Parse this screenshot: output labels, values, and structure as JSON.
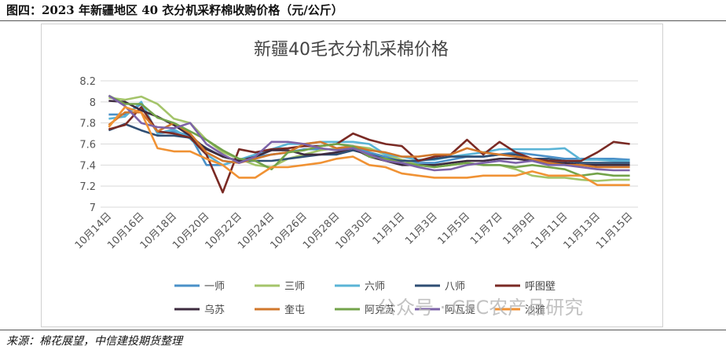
{
  "caption": "图四：2023 年新疆地区 40 衣分机采籽棉收购价格（元/公斤）",
  "source": "来源：棉花展望，中信建投期货整理",
  "watermark": "公众号 · CFC农产品研究",
  "chart_data": {
    "type": "line",
    "title": "新疆40毛衣分机采棉价格",
    "xlabel": "",
    "ylabel": "",
    "ylim": [
      7,
      8.2
    ],
    "yticks": [
      "7",
      "7.2",
      "7.4",
      "7.6",
      "7.8",
      "8",
      "8.2"
    ],
    "grid": true,
    "legend_position": "bottom",
    "x": [
      "10月14日",
      "10月15日",
      "10月16日",
      "10月17日",
      "10月18日",
      "10月19日",
      "10月20日",
      "10月21日",
      "10月22日",
      "10月23日",
      "10月24日",
      "10月25日",
      "10月26日",
      "10月27日",
      "10月28日",
      "10月29日",
      "10月30日",
      "10月31日",
      "11月1日",
      "11月2日",
      "11月3日",
      "11月4日",
      "11月5日",
      "11月6日",
      "11月7日",
      "11月8日",
      "11月9日",
      "11月10日",
      "11月11日",
      "11月12日",
      "11月13日",
      "11月14日",
      "11月15日"
    ],
    "x_tick_labels": [
      "10月14日",
      "10月16日",
      "10月18日",
      "10月20日",
      "10月22日",
      "10月24日",
      "10月26日",
      "10月28日",
      "10月30日",
      "11月1日",
      "11月3日",
      "11月5日",
      "11月7日",
      "11月9日",
      "11月11日",
      "11月13日",
      "11月15日"
    ],
    "series": [
      {
        "name": "一师",
        "color": "#4a90c8",
        "values": [
          7.88,
          7.88,
          7.98,
          7.7,
          7.72,
          7.68,
          7.4,
          7.4,
          7.45,
          7.48,
          7.5,
          7.52,
          7.55,
          7.55,
          7.55,
          7.58,
          7.52,
          7.48,
          7.45,
          7.42,
          7.42,
          7.45,
          7.48,
          7.48,
          7.5,
          7.52,
          7.5,
          7.48,
          7.46,
          7.46,
          7.46,
          7.46,
          7.45
        ]
      },
      {
        "name": "三师",
        "color": "#a4c46a",
        "values": [
          8.04,
          8.02,
          8.05,
          7.98,
          7.84,
          7.8,
          7.64,
          7.52,
          7.46,
          7.4,
          7.38,
          7.46,
          7.5,
          7.54,
          7.56,
          7.58,
          7.56,
          7.5,
          7.45,
          7.4,
          7.38,
          7.4,
          7.42,
          7.4,
          7.4,
          7.36,
          7.3,
          7.28,
          7.28,
          7.26,
          7.25,
          7.26,
          7.26
        ]
      },
      {
        "name": "六师",
        "color": "#5ab4d6",
        "values": [
          7.84,
          7.86,
          8.0,
          7.7,
          7.74,
          7.65,
          7.5,
          7.4,
          7.45,
          7.5,
          7.55,
          7.6,
          7.6,
          7.62,
          7.62,
          7.62,
          7.6,
          7.5,
          7.48,
          7.45,
          7.45,
          7.48,
          7.5,
          7.52,
          7.55,
          7.55,
          7.55,
          7.55,
          7.56,
          7.45,
          7.45,
          7.44,
          7.44
        ]
      },
      {
        "name": "八师",
        "color": "#2f4e73",
        "values": [
          7.73,
          7.79,
          7.73,
          7.68,
          7.68,
          7.66,
          7.56,
          7.48,
          7.44,
          7.44,
          7.44,
          7.46,
          7.48,
          7.5,
          7.5,
          7.54,
          7.5,
          7.46,
          7.44,
          7.44,
          7.46,
          7.48,
          7.48,
          7.48,
          7.5,
          7.5,
          7.46,
          7.46,
          7.44,
          7.42,
          7.42,
          7.42,
          7.42
        ]
      },
      {
        "name": "呼图壁",
        "color": "#7a2a24",
        "values": [
          7.74,
          7.78,
          7.95,
          7.72,
          7.7,
          7.66,
          7.5,
          7.14,
          7.55,
          7.52,
          7.55,
          7.56,
          7.58,
          7.58,
          7.6,
          7.7,
          7.64,
          7.6,
          7.58,
          7.44,
          7.48,
          7.5,
          7.64,
          7.5,
          7.62,
          7.52,
          7.46,
          7.44,
          7.44,
          7.44,
          7.52,
          7.62,
          7.6
        ]
      },
      {
        "name": "乌苏",
        "color": "#3d2b3f",
        "values": [
          8.01,
          8.0,
          7.92,
          7.86,
          7.78,
          7.68,
          7.55,
          7.48,
          7.44,
          7.48,
          7.54,
          7.54,
          7.5,
          7.5,
          7.52,
          7.56,
          7.48,
          7.44,
          7.4,
          7.4,
          7.4,
          7.42,
          7.44,
          7.44,
          7.46,
          7.46,
          7.44,
          7.42,
          7.42,
          7.4,
          7.4,
          7.4,
          7.4
        ]
      },
      {
        "name": "奎屯",
        "color": "#d1782c",
        "values": [
          7.78,
          7.9,
          7.9,
          7.72,
          7.8,
          7.7,
          7.52,
          7.44,
          7.42,
          7.46,
          7.5,
          7.52,
          7.6,
          7.62,
          7.56,
          7.58,
          7.54,
          7.52,
          7.48,
          7.48,
          7.5,
          7.5,
          7.56,
          7.52,
          7.5,
          7.48,
          7.46,
          7.42,
          7.4,
          7.4,
          7.38,
          7.38,
          7.38
        ]
      },
      {
        "name": "阿克苏",
        "color": "#73a34a",
        "values": [
          8.06,
          7.98,
          7.98,
          7.85,
          7.8,
          7.72,
          7.64,
          7.54,
          7.46,
          7.44,
          7.36,
          7.52,
          7.54,
          7.58,
          7.6,
          7.58,
          7.48,
          7.46,
          7.42,
          7.4,
          7.38,
          7.4,
          7.42,
          7.4,
          7.4,
          7.38,
          7.4,
          7.38,
          7.36,
          7.3,
          7.32,
          7.3,
          7.3
        ]
      },
      {
        "name": "阿瓦提",
        "color": "#7d63a8",
        "values": [
          8.06,
          7.96,
          7.8,
          7.76,
          7.75,
          7.8,
          7.6,
          7.5,
          7.42,
          7.48,
          7.62,
          7.62,
          7.6,
          7.56,
          7.54,
          7.56,
          7.5,
          7.44,
          7.42,
          7.38,
          7.35,
          7.36,
          7.4,
          7.42,
          7.44,
          7.42,
          7.44,
          7.4,
          7.4,
          7.38,
          7.36,
          7.35,
          7.35
        ]
      },
      {
        "name": "沙雅",
        "color": "#f09234",
        "values": [
          7.76,
          7.95,
          7.9,
          7.56,
          7.53,
          7.53,
          7.46,
          7.4,
          7.28,
          7.28,
          7.38,
          7.38,
          7.4,
          7.42,
          7.46,
          7.48,
          7.4,
          7.38,
          7.32,
          7.3,
          7.28,
          7.28,
          7.28,
          7.3,
          7.3,
          7.3,
          7.34,
          7.3,
          7.3,
          7.3,
          7.21,
          7.21,
          7.21
        ]
      }
    ]
  }
}
